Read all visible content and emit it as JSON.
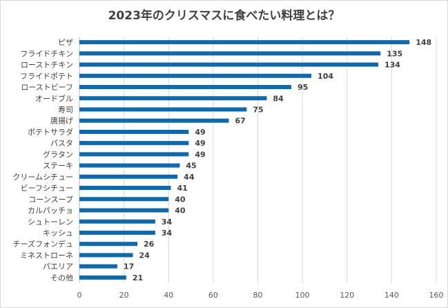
{
  "chart_data": {
    "type": "bar",
    "orientation": "horizontal",
    "title": "2023年のクリスマスに食べたい料理とは？",
    "xlabel": "",
    "ylabel": "",
    "xlim": [
      0,
      160
    ],
    "x_ticks": [
      0,
      20,
      40,
      60,
      80,
      100,
      120,
      140,
      160
    ],
    "grid": true,
    "bar_color": "#0f6aad",
    "categories": [
      "ピザ",
      "フライドチキン",
      "ローストチキン",
      "フライドポテト",
      "ローストビーフ",
      "オードブル",
      "寿司",
      "唐揚げ",
      "ポテトサラダ",
      "パスタ",
      "グラタン",
      "ステーキ",
      "クリームシチュー",
      "ビーフシチュー",
      "コーンスープ",
      "カルパッチョ",
      "シュトーレン",
      "キッシュ",
      "チーズフォンデュ",
      "ミネストローネ",
      "パエリア",
      "その他"
    ],
    "values": [
      148,
      135,
      134,
      104,
      95,
      84,
      75,
      67,
      49,
      49,
      49,
      45,
      44,
      41,
      40,
      40,
      34,
      34,
      26,
      24,
      17,
      21
    ]
  }
}
